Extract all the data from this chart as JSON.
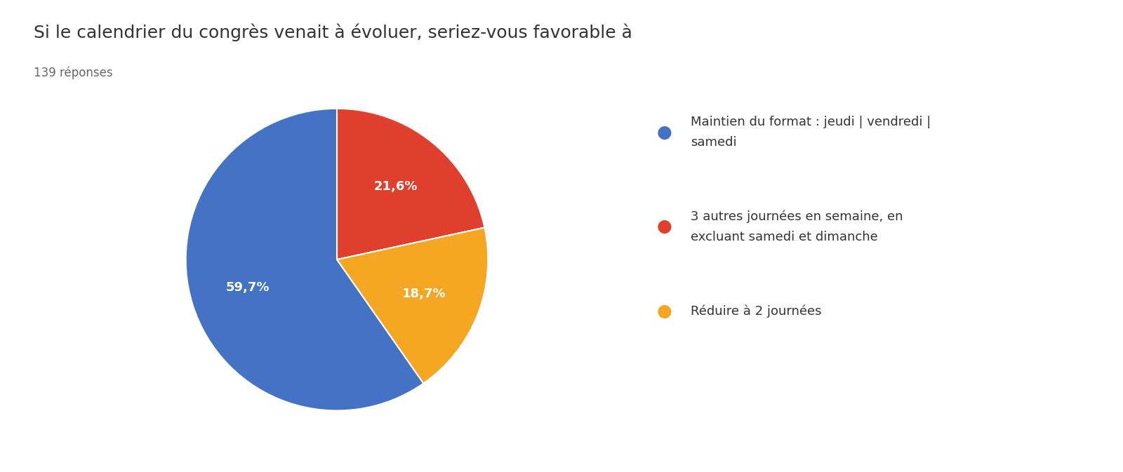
{
  "title": "Si le calendrier du congrès venait à évoluer, seriez-vous favorable à",
  "subtitle": "139 réponses",
  "slices": [
    59.7,
    21.6,
    18.7
  ],
  "colors": [
    "#4472C4",
    "#E03F2E",
    "#F5A623"
  ],
  "pct_labels": [
    "59,7%",
    "21,6%",
    "18,7%"
  ],
  "legend_labels": [
    "Maintien du format : jeudi | vendredi |\nsamedi",
    "3 autres journées en semaine, en\nexcluant samedi et dimanche",
    "Réduire à 2 journées"
  ],
  "background_color": "#ffffff",
  "title_fontsize": 18,
  "subtitle_fontsize": 12,
  "label_fontsize": 13,
  "legend_fontsize": 13
}
